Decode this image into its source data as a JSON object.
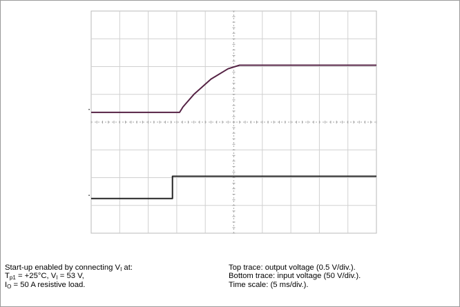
{
  "chart_data": {
    "type": "line",
    "grid": true,
    "x_divisions": 10,
    "y_divisions": 8,
    "series": [
      {
        "points": [
          [
            0,
            4.35
          ],
          [
            3.1,
            4.35
          ],
          [
            3.22,
            4.55
          ],
          [
            3.6,
            5.0
          ],
          [
            4.2,
            5.55
          ],
          [
            4.8,
            5.92
          ],
          [
            5.2,
            6.05
          ],
          [
            10,
            6.05
          ]
        ],
        "color": "#552244"
      },
      {
        "points": [
          [
            0,
            1.25
          ],
          [
            2.85,
            1.25
          ],
          [
            2.85,
            2.05
          ],
          [
            10,
            2.05
          ]
        ],
        "color": "#222222"
      }
    ]
  },
  "caption": {
    "left": {
      "line1": {
        "text": "Start-up enabled by connecting V",
        "sub": "I",
        "after": " at:"
      },
      "line2": {
        "p1": "T",
        "sub1": "p1",
        "p2": " = +25°C, V",
        "sub2": "I",
        "p3": " = 53 V,"
      },
      "line3": {
        "p1": "I",
        "sub1": "O",
        "p2": " = 50 A resistive load."
      }
    },
    "right": {
      "line1": "Top trace: output voltage (0.5 V/div.).",
      "line2": "Bottom trace: input voltage (50 V/div.).",
      "line3": "Time scale: (5 ms/div.)."
    }
  }
}
